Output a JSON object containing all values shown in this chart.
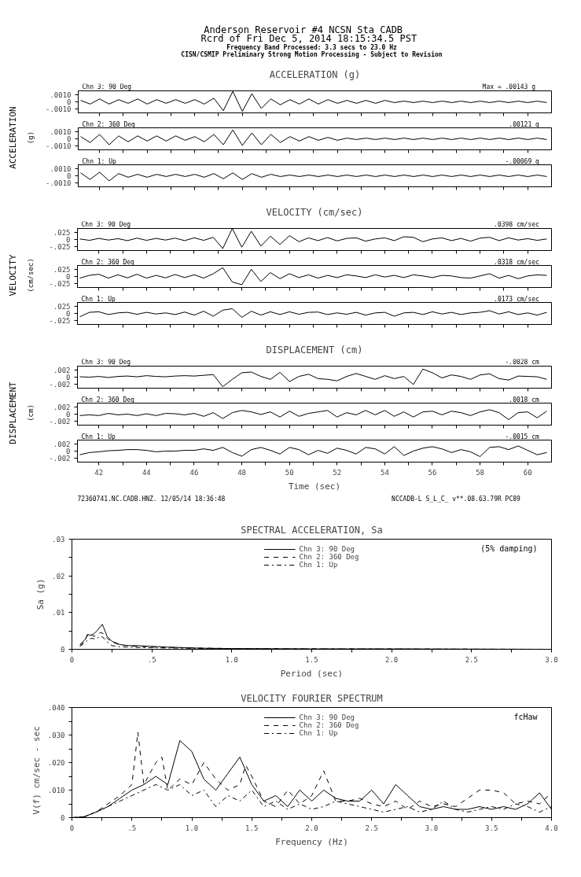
{
  "chart_data": [
    {
      "type": "other",
      "title": "Anderson Reservoir #4    NCSN Sta CADB",
      "subtitle": "Rcrd of Fri Dec  5, 2014 18:15:34.5 PST",
      "annotations": [
        "Frequency Band Processed: 3.3 secs to 23.0 Hz",
        "CISN/CSMIP Preliminary Strong Motion Processing - Subject to Revision"
      ]
    },
    {
      "type": "line",
      "title": "ACCELERATION (g)",
      "tick_labels": "y",
      "xlim": [
        41.1,
        61
      ],
      "ylim": [
        -0.0015,
        0.0015
      ],
      "yticks": [
        {
          "value": 0.001,
          "label": ".0010"
        },
        {
          "value": 0,
          "label": "0"
        },
        {
          "value": -0.001,
          "label": "-.0010"
        }
      ],
      "xticks": [
        42,
        {
          "value": 43,
          "label": null
        },
        44,
        {
          "value": 45,
          "label": null
        },
        46,
        {
          "value": 47,
          "label": null
        },
        48,
        {
          "value": 49,
          "label": null
        },
        50,
        {
          "value": 51,
          "label": null
        },
        52,
        {
          "value": 53,
          "label": null
        },
        54,
        {
          "value": 55,
          "label": null
        },
        56,
        {
          "value": 57,
          "label": null
        },
        58,
        {
          "value": 59,
          "label": null
        },
        60
      ],
      "annotations": [
        "Chn 3: 90 Deg",
        "Max =  .00143   g"
      ],
      "x": [
        41.2,
        41.6,
        42.0,
        42.4,
        42.8,
        43.2,
        43.6,
        44.0,
        44.4,
        44.8,
        45.2,
        45.6,
        46.0,
        46.4,
        46.8,
        47.2,
        47.6,
        48.0,
        48.4,
        48.8,
        49.2,
        49.6,
        50.0,
        50.4,
        50.8,
        51.2,
        51.6,
        52.0,
        52.4,
        52.8,
        53.2,
        53.6,
        54.0,
        54.4,
        54.8,
        55.2,
        55.6,
        56.0,
        56.4,
        56.8,
        57.2,
        57.6,
        58.0,
        58.4,
        58.8,
        59.2,
        59.6,
        60.0,
        60.4,
        60.8
      ],
      "series": [
        {
          "color": "#000000",
          "values": [
            0.0002,
            -0.0003,
            0.0004,
            -0.0003,
            0.0003,
            -0.0002,
            0.0004,
            -0.0003,
            0.0003,
            -0.0002,
            0.0003,
            -0.0002,
            0.0003,
            -0.0003,
            0.0005,
            -0.0012,
            0.00143,
            -0.0013,
            0.0011,
            -0.0009,
            0.0004,
            -0.0004,
            0.0003,
            -0.0003,
            0.0004,
            -0.0003,
            0.0003,
            -0.0002,
            0.0002,
            -0.0002,
            0.0002,
            -0.0002,
            0.0002,
            -0.0001,
            0.0001,
            -0.0001,
            0.0001,
            -0.0001,
            0.0001,
            -0.0001,
            0.0001,
            -0.0001,
            0.0001,
            -0.0001,
            0.0001,
            -0.0001,
            0.0001,
            -0.0001,
            0.0001,
            -0.0001
          ]
        }
      ]
    },
    {
      "type": "line",
      "ylabel": "ACCELERATION",
      "tick_labels": "y",
      "xlim": [
        41.1,
        61
      ],
      "ylim": [
        -0.0015,
        0.0015
      ],
      "yticks": [
        {
          "value": 0.001,
          "label": ".0010"
        },
        {
          "value": 0,
          "label": "0"
        },
        {
          "value": -0.001,
          "label": "-.0010"
        }
      ],
      "xticks": [
        42,
        {
          "value": 43,
          "label": null
        },
        44,
        {
          "value": 45,
          "label": null
        },
        46,
        {
          "value": 47,
          "label": null
        },
        48,
        {
          "value": 49,
          "label": null
        },
        50,
        {
          "value": 51,
          "label": null
        },
        52,
        {
          "value": 53,
          "label": null
        },
        54,
        {
          "value": 55,
          "label": null
        },
        56,
        {
          "value": 57,
          "label": null
        },
        58,
        {
          "value": 59,
          "label": null
        },
        60
      ],
      "annotations": [
        "Chn 2: 360 Deg",
        ".00121   g",
        "(g)"
      ],
      "x": [
        41.2,
        41.6,
        42.0,
        42.4,
        42.8,
        43.2,
        43.6,
        44.0,
        44.4,
        44.8,
        45.2,
        45.6,
        46.0,
        46.4,
        46.8,
        47.2,
        47.6,
        48.0,
        48.4,
        48.8,
        49.2,
        49.6,
        50.0,
        50.4,
        50.8,
        51.2,
        51.6,
        52.0,
        52.4,
        52.8,
        53.2,
        53.6,
        54.0,
        54.4,
        54.8,
        55.2,
        55.6,
        56.0,
        56.4,
        56.8,
        57.2,
        57.6,
        58.0,
        58.4,
        58.8,
        59.2,
        59.6,
        60.0,
        60.4,
        60.8
      ],
      "series": [
        {
          "color": "#000000",
          "values": [
            0.0003,
            -0.0005,
            0.0006,
            -0.0008,
            0.0004,
            -0.0004,
            0.0004,
            -0.0003,
            0.0004,
            -0.0003,
            0.0004,
            -0.0002,
            0.0003,
            -0.0004,
            0.0006,
            -0.0008,
            0.00121,
            -0.0009,
            0.0008,
            -0.0008,
            0.0006,
            -0.0005,
            0.0003,
            -0.0003,
            0.0003,
            -0.0002,
            0.0002,
            -0.0002,
            0.0001,
            -0.0001,
            0.0001,
            -0.0001,
            0.0001,
            -0.0001,
            0.0001,
            -0.0001,
            0.0001,
            -0.0001,
            0.0001,
            -0.0001,
            0.0001,
            -0.0001,
            0.0001,
            -0.0001,
            0.0001,
            -0.0001,
            0.0001,
            -0.0001,
            0.0001,
            -0.0001
          ]
        }
      ]
    },
    {
      "type": "line",
      "tick_labels": "y",
      "xlim": [
        41.1,
        61
      ],
      "ylim": [
        -0.0015,
        0.0015
      ],
      "yticks": [
        {
          "value": 0.001,
          "label": ".0010"
        },
        {
          "value": 0,
          "label": "0"
        },
        {
          "value": -0.001,
          "label": "-.0010"
        }
      ],
      "xticks": [
        42,
        {
          "value": 43,
          "label": null
        },
        44,
        {
          "value": 45,
          "label": null
        },
        46,
        {
          "value": 47,
          "label": null
        },
        48,
        {
          "value": 49,
          "label": null
        },
        50,
        {
          "value": 51,
          "label": null
        },
        52,
        {
          "value": 53,
          "label": null
        },
        54,
        {
          "value": 55,
          "label": null
        },
        56,
        {
          "value": 57,
          "label": null
        },
        58,
        {
          "value": 59,
          "label": null
        },
        60
      ],
      "annotations": [
        "Chn 1: Up",
        "-.00069   g"
      ],
      "x": [
        41.2,
        41.6,
        42.0,
        42.4,
        42.8,
        43.2,
        43.6,
        44.0,
        44.4,
        44.8,
        45.2,
        45.6,
        46.0,
        46.4,
        46.8,
        47.2,
        47.6,
        48.0,
        48.4,
        48.8,
        49.2,
        49.6,
        50.0,
        50.4,
        50.8,
        51.2,
        51.6,
        52.0,
        52.4,
        52.8,
        53.2,
        53.6,
        54.0,
        54.4,
        54.8,
        55.2,
        55.6,
        56.0,
        56.4,
        56.8,
        57.2,
        57.6,
        58.0,
        58.4,
        58.8,
        59.2,
        59.6,
        60.0,
        60.4,
        60.8
      ],
      "series": [
        {
          "color": "#000000",
          "values": [
            0.0004,
            -0.0005,
            0.0005,
            -0.00069,
            0.0003,
            -0.0002,
            0.0002,
            -0.0002,
            0.0002,
            -0.0001,
            0.0002,
            -0.0001,
            0.0002,
            -0.0002,
            0.0003,
            -0.0004,
            0.0004,
            -0.0005,
            0.0003,
            -0.0002,
            0.0002,
            -0.0001,
            0.0001,
            -0.0001,
            0.0001,
            -0.0001,
            0.0001,
            -0.0001,
            0.0001,
            -0.0001,
            0.0001,
            -0.0001,
            0.0001,
            -0.0001,
            0.0001,
            -0.0001,
            0.0001,
            -0.0001,
            0.0001,
            -0.0001,
            0.0001,
            -0.0001,
            0.0001,
            -0.0001,
            0.0001,
            -0.0001,
            0.0001,
            -0.0001,
            0.0001,
            -0.0001
          ]
        }
      ]
    },
    {
      "type": "line",
      "title": "VELOCITY (cm/sec)",
      "tick_labels": "y",
      "xlim": [
        41.1,
        61
      ],
      "ylim": [
        -0.04,
        0.04
      ],
      "yticks": [
        {
          "value": 0.025,
          "label": ".025"
        },
        {
          "value": 0,
          "label": "0"
        },
        {
          "value": -0.025,
          "label": "-.025"
        }
      ],
      "xticks": [
        42,
        {
          "value": 43,
          "label": null
        },
        44,
        {
          "value": 45,
          "label": null
        },
        46,
        {
          "value": 47,
          "label": null
        },
        48,
        {
          "value": 49,
          "label": null
        },
        50,
        {
          "value": 51,
          "label": null
        },
        52,
        {
          "value": 53,
          "label": null
        },
        54,
        {
          "value": 55,
          "label": null
        },
        56,
        {
          "value": 57,
          "label": null
        },
        58,
        {
          "value": 59,
          "label": null
        },
        60
      ],
      "annotations": [
        "Chn 3: 90 Deg",
        ".0398   cm/sec"
      ],
      "x": [
        41.2,
        41.6,
        42.0,
        42.4,
        42.8,
        43.2,
        43.6,
        44.0,
        44.4,
        44.8,
        45.2,
        45.6,
        46.0,
        46.4,
        46.8,
        47.2,
        47.6,
        48.0,
        48.4,
        48.8,
        49.2,
        49.6,
        50.0,
        50.4,
        50.8,
        51.2,
        51.6,
        52.0,
        52.4,
        52.8,
        53.2,
        53.6,
        54.0,
        54.4,
        54.8,
        55.2,
        55.6,
        56.0,
        56.4,
        56.8,
        57.2,
        57.6,
        58.0,
        58.4,
        58.8,
        59.2,
        59.6,
        60.0,
        60.4,
        60.8
      ],
      "series": [
        {
          "color": "#000000",
          "values": [
            0.002,
            -0.003,
            0.004,
            -0.002,
            0.003,
            -0.004,
            0.005,
            -0.003,
            0.004,
            -0.002,
            0.005,
            -0.004,
            0.006,
            -0.003,
            0.008,
            -0.033,
            0.0398,
            -0.028,
            0.03,
            -0.024,
            0.012,
            -0.018,
            0.014,
            -0.008,
            0.006,
            -0.004,
            0.007,
            -0.005,
            0.004,
            0.006,
            -0.006,
            0.002,
            0.006,
            -0.004,
            0.01,
            0.008,
            -0.008,
            0.002,
            0.006,
            -0.004,
            0.004,
            -0.006,
            0.005,
            0.008,
            -0.004,
            0.006,
            -0.002,
            0.003,
            -0.003,
            0.002
          ]
        }
      ]
    },
    {
      "type": "line",
      "ylabel": "VELOCITY",
      "tick_labels": "y",
      "xlim": [
        41.1,
        61
      ],
      "ylim": [
        -0.04,
        0.04
      ],
      "yticks": [
        {
          "value": 0.025,
          "label": ".025"
        },
        {
          "value": 0,
          "label": "0"
        },
        {
          "value": -0.025,
          "label": "-.025"
        }
      ],
      "xticks": [
        42,
        {
          "value": 43,
          "label": null
        },
        44,
        {
          "value": 45,
          "label": null
        },
        46,
        {
          "value": 47,
          "label": null
        },
        48,
        {
          "value": 49,
          "label": null
        },
        50,
        {
          "value": 51,
          "label": null
        },
        52,
        {
          "value": 53,
          "label": null
        },
        54,
        {
          "value": 55,
          "label": null
        },
        56,
        {
          "value": 57,
          "label": null
        },
        58,
        {
          "value": 59,
          "label": null
        },
        60
      ],
      "annotations": [
        "Chn 2: 360 Deg",
        ".0318   cm/sec",
        "(cm/sec)"
      ],
      "x": [
        41.2,
        41.6,
        42.0,
        42.4,
        42.8,
        43.2,
        43.6,
        44.0,
        44.4,
        44.8,
        45.2,
        45.6,
        46.0,
        46.4,
        46.8,
        47.2,
        47.6,
        48.0,
        48.4,
        48.8,
        49.2,
        49.6,
        50.0,
        50.4,
        50.8,
        51.2,
        51.6,
        52.0,
        52.4,
        52.8,
        53.2,
        53.6,
        54.0,
        54.4,
        54.8,
        55.2,
        55.6,
        56.0,
        56.4,
        56.8,
        57.2,
        57.6,
        58.0,
        58.4,
        58.8,
        59.2,
        59.6,
        60.0,
        60.4,
        60.8
      ],
      "series": [
        {
          "color": "#000000",
          "values": [
            -0.006,
            0.004,
            0.008,
            -0.006,
            0.006,
            -0.005,
            0.008,
            -0.006,
            0.004,
            -0.005,
            0.007,
            -0.004,
            0.006,
            -0.006,
            0.01,
            0.0318,
            -0.02,
            -0.03,
            0.026,
            -0.018,
            0.014,
            -0.008,
            0.01,
            -0.004,
            0.006,
            -0.006,
            0.004,
            -0.004,
            0.006,
            0.002,
            -0.004,
            0.006,
            -0.002,
            0.004,
            -0.004,
            0.006,
            0.002,
            -0.004,
            0.004,
            0.002,
            -0.004,
            -0.006,
            0.002,
            0.01,
            -0.006,
            0.004,
            -0.008,
            0.002,
            0.006,
            0.004
          ]
        }
      ]
    },
    {
      "type": "line",
      "tick_labels": "y",
      "xlim": [
        41.1,
        61
      ],
      "ylim": [
        -0.04,
        0.04
      ],
      "yticks": [
        {
          "value": 0.025,
          "label": ".025"
        },
        {
          "value": 0,
          "label": "0"
        },
        {
          "value": -0.025,
          "label": "-.025"
        }
      ],
      "xticks": [
        42,
        {
          "value": 43,
          "label": null
        },
        44,
        {
          "value": 45,
          "label": null
        },
        46,
        {
          "value": 47,
          "label": null
        },
        48,
        {
          "value": 49,
          "label": null
        },
        50,
        {
          "value": 51,
          "label": null
        },
        52,
        {
          "value": 53,
          "label": null
        },
        54,
        {
          "value": 55,
          "label": null
        },
        56,
        {
          "value": 57,
          "label": null
        },
        58,
        {
          "value": 59,
          "label": null
        },
        60
      ],
      "annotations": [
        "Chn 1: Up",
        ".0173   cm/sec"
      ],
      "x": [
        41.2,
        41.6,
        42.0,
        42.4,
        42.8,
        43.2,
        43.6,
        44.0,
        44.4,
        44.8,
        45.2,
        45.6,
        46.0,
        46.4,
        46.8,
        47.2,
        47.6,
        48.0,
        48.4,
        48.8,
        49.2,
        49.6,
        50.0,
        50.4,
        50.8,
        51.2,
        51.6,
        52.0,
        52.4,
        52.8,
        53.2,
        53.6,
        54.0,
        54.4,
        54.8,
        55.2,
        55.6,
        56.0,
        56.4,
        56.8,
        57.2,
        57.6,
        58.0,
        58.4,
        58.8,
        59.2,
        59.6,
        60.0,
        60.4,
        60.8
      ],
      "series": [
        {
          "color": "#000000",
          "values": [
            -0.012,
            0.004,
            0.006,
            -0.004,
            0.002,
            0.004,
            -0.003,
            0.004,
            -0.002,
            0.002,
            -0.004,
            0.005,
            -0.006,
            0.008,
            -0.01,
            0.012,
            0.0173,
            -0.014,
            0.008,
            -0.006,
            0.006,
            -0.004,
            0.006,
            -0.003,
            0.004,
            0.005,
            -0.004,
            0.002,
            -0.003,
            0.004,
            -0.006,
            0.002,
            0.004,
            -0.01,
            0.002,
            0.004,
            -0.004,
            0.006,
            -0.002,
            0.004,
            -0.004,
            0.002,
            0.004,
            0.01,
            -0.002,
            0.006,
            -0.004,
            0.002,
            -0.006,
            0.004
          ]
        }
      ]
    },
    {
      "type": "line",
      "title": "DISPLACEMENT (cm)",
      "tick_labels": "y",
      "xlim": [
        41.1,
        61
      ],
      "ylim": [
        -0.003,
        0.003
      ],
      "yticks": [
        {
          "value": 0.002,
          "label": ".002"
        },
        {
          "value": 0,
          "label": "0"
        },
        {
          "value": -0.002,
          "label": "-.002"
        }
      ],
      "xticks": [
        42,
        {
          "value": 43,
          "label": null
        },
        44,
        {
          "value": 45,
          "label": null
        },
        46,
        {
          "value": 47,
          "label": null
        },
        48,
        {
          "value": 49,
          "label": null
        },
        50,
        {
          "value": 51,
          "label": null
        },
        52,
        {
          "value": 53,
          "label": null
        },
        54,
        {
          "value": 55,
          "label": null
        },
        56,
        {
          "value": 57,
          "label": null
        },
        58,
        {
          "value": 59,
          "label": null
        },
        60
      ],
      "annotations": [
        "Chn 3: 90 Deg",
        "-.0028   cm"
      ],
      "x": [
        41.2,
        41.6,
        42.0,
        42.4,
        42.8,
        43.2,
        43.6,
        44.0,
        44.4,
        44.8,
        45.2,
        45.6,
        46.0,
        46.4,
        46.8,
        47.2,
        47.6,
        48.0,
        48.4,
        48.8,
        49.2,
        49.6,
        50.0,
        50.4,
        50.8,
        51.2,
        51.6,
        52.0,
        52.4,
        52.8,
        53.2,
        53.6,
        54.0,
        54.4,
        54.8,
        55.2,
        55.6,
        56.0,
        56.4,
        56.8,
        57.2,
        57.6,
        58.0,
        58.4,
        58.8,
        59.2,
        59.6,
        60.0,
        60.4,
        60.8
      ],
      "series": [
        {
          "color": "#000000",
          "values": [
            0.0001,
            0,
            0.0002,
            -0.0001,
            0.0002,
            0.0003,
            0.0001,
            0.0004,
            0.0002,
            0.0001,
            0.0003,
            0.0004,
            0.0003,
            0.0005,
            0.0007,
            -0.0026,
            -0.0006,
            0.0012,
            0.0014,
            0.0002,
            -0.0006,
            0.0013,
            -0.0012,
            0.0002,
            0.0008,
            -0.0004,
            -0.0006,
            -0.001,
            0.0002,
            0.001,
            0.0002,
            -0.0006,
            0.0004,
            -0.0004,
            0.0002,
            -0.002,
            0.0022,
            0.0012,
            -0.0002,
            0.0006,
            0.0002,
            -0.0006,
            0.0006,
            0.0009,
            -0.0004,
            -0.0008,
            0.0003,
            0.0002,
            0.0001,
            -0.0006
          ]
        }
      ]
    },
    {
      "type": "line",
      "ylabel": "DISPLACEMENT",
      "tick_labels": "y",
      "xlim": [
        41.1,
        61
      ],
      "ylim": [
        -0.003,
        0.003
      ],
      "yticks": [
        {
          "value": 0.002,
          "label": ".002"
        },
        {
          "value": 0,
          "label": "0"
        },
        {
          "value": -0.002,
          "label": "-.002"
        }
      ],
      "xticks": [
        42,
        {
          "value": 43,
          "label": null
        },
        44,
        {
          "value": 45,
          "label": null
        },
        46,
        {
          "value": 47,
          "label": null
        },
        48,
        {
          "value": 49,
          "label": null
        },
        50,
        {
          "value": 51,
          "label": null
        },
        52,
        {
          "value": 53,
          "label": null
        },
        54,
        {
          "value": 55,
          "label": null
        },
        56,
        {
          "value": 57,
          "label": null
        },
        58,
        {
          "value": 59,
          "label": null
        },
        60
      ],
      "annotations": [
        "Chn 2: 360 Deg",
        ".0018   cm",
        "(cm)"
      ],
      "x": [
        41.2,
        41.6,
        42.0,
        42.4,
        42.8,
        43.2,
        43.6,
        44.0,
        44.4,
        44.8,
        45.2,
        45.6,
        46.0,
        46.4,
        46.8,
        47.2,
        47.6,
        48.0,
        48.4,
        48.8,
        49.2,
        49.6,
        50.0,
        50.4,
        50.8,
        51.2,
        51.6,
        52.0,
        52.4,
        52.8,
        53.2,
        53.6,
        54.0,
        54.4,
        54.8,
        55.2,
        55.6,
        56.0,
        56.4,
        56.8,
        57.2,
        57.6,
        58.0,
        58.4,
        58.8,
        59.2,
        59.6,
        60.0,
        60.4,
        60.8
      ],
      "series": [
        {
          "color": "#000000",
          "values": [
            -0.0004,
            -0.0002,
            -0.0004,
            0.0002,
            -0.0002,
            0,
            -0.0004,
            0.0001,
            -0.0004,
            0.0002,
            0.0001,
            -0.0002,
            0.0002,
            -0.0006,
            0.0004,
            -0.0012,
            0.0004,
            0.001,
            0.0006,
            -0.0001,
            0.0006,
            -0.0008,
            0.0008,
            -0.0006,
            0.0002,
            0.0006,
            0.001,
            -0.0008,
            0.0004,
            -0.0002,
            0.001,
            -0.0002,
            0.001,
            -0.0006,
            0.0006,
            -0.0008,
            0.0006,
            0.0008,
            -0.0002,
            0.0008,
            0.0004,
            -0.0004,
            0.0006,
            0.0012,
            0.0004,
            -0.0015,
            0.0004,
            0.0006,
            -0.001,
            0.0008
          ]
        }
      ]
    },
    {
      "type": "line",
      "xlabel": "Time (sec)",
      "xlim": [
        41.1,
        61
      ],
      "ylim": [
        -0.003,
        0.003
      ],
      "yticks": [
        {
          "value": 0.002,
          "label": ".002"
        },
        {
          "value": 0,
          "label": "0"
        },
        {
          "value": -0.002,
          "label": "-.002"
        }
      ],
      "xticks": [
        42,
        {
          "value": 43,
          "label": null
        },
        44,
        {
          "value": 45,
          "label": null
        },
        46,
        {
          "value": 47,
          "label": null
        },
        48,
        {
          "value": 49,
          "label": null
        },
        50,
        {
          "value": 51,
          "label": null
        },
        52,
        {
          "value": 53,
          "label": null
        },
        54,
        {
          "value": 55,
          "label": null
        },
        56,
        {
          "value": 57,
          "label": null
        },
        58,
        {
          "value": 59,
          "label": null
        },
        60
      ],
      "annotations": [
        "Chn 1: Up",
        "-.0015   cm",
        "72360741.NC.CADB.HNZ. 12/05/14 18:36:48",
        "NCCADB-L  S_L_C_  v**.08.63.79R PC89"
      ],
      "x": [
        41.2,
        41.6,
        42.0,
        42.4,
        42.8,
        43.2,
        43.6,
        44.0,
        44.4,
        44.8,
        45.2,
        45.6,
        46.0,
        46.4,
        46.8,
        47.2,
        47.6,
        48.0,
        48.4,
        48.8,
        49.2,
        49.6,
        50.0,
        50.4,
        50.8,
        51.2,
        51.6,
        52.0,
        52.4,
        52.8,
        53.2,
        53.6,
        54.0,
        54.4,
        54.8,
        55.2,
        55.6,
        56.0,
        56.4,
        56.8,
        57.2,
        57.6,
        58.0,
        58.4,
        58.8,
        59.2,
        59.6,
        60.0,
        60.4,
        60.8
      ],
      "series": [
        {
          "color": "#000000",
          "values": [
            -0.001,
            -0.0004,
            -0.0002,
            0.0001,
            0.0002,
            0.0004,
            0.0004,
            0.0002,
            -0.0002,
            0,
            0,
            0.0002,
            0.0002,
            0.0006,
            0.0002,
            0.001,
            -0.0004,
            -0.0014,
            0.0004,
            0.001,
            0.0002,
            -0.0008,
            0.001,
            0.0004,
            -0.001,
            0.0002,
            -0.0006,
            0.0008,
            0.0002,
            -0.0008,
            0.001,
            0.0006,
            -0.0008,
            0.0012,
            -0.0012,
            0,
            0.0008,
            0.0012,
            0.0006,
            -0.0004,
            0.0004,
            -0.0002,
            -0.0015,
            0.001,
            0.0012,
            0.0004,
            0.0014,
            0.0002,
            -0.001,
            -0.0004
          ]
        }
      ]
    },
    {
      "type": "line",
      "title": "SPECTRAL ACCELERATION, Sa",
      "xlabel": "Period (sec)",
      "ylabel": "Sa (g)",
      "legend": "top",
      "annotations": [
        "(5% damping)"
      ],
      "xlim": [
        0,
        3
      ],
      "ylim": [
        0,
        0.03
      ],
      "xticks": [
        {
          "value": 0,
          "label": "0"
        },
        {
          "value": 0.25,
          "label": null
        },
        {
          "value": 0.5,
          "label": ".5"
        },
        {
          "value": 0.75,
          "label": null
        },
        {
          "value": 1,
          "label": "1.0"
        },
        {
          "value": 1.25,
          "label": null
        },
        {
          "value": 1.5,
          "label": "1.5"
        },
        {
          "value": 1.75,
          "label": null
        },
        {
          "value": 2,
          "label": "2.0"
        },
        {
          "value": 2.25,
          "label": null
        },
        {
          "value": 2.5,
          "label": "2.5"
        },
        {
          "value": 2.75,
          "label": null
        },
        {
          "value": 3,
          "label": "3.0"
        }
      ],
      "yticks": [
        {
          "value": 0,
          "label": "0"
        },
        {
          "value": 0.005,
          "label": null
        },
        {
          "value": 0.01,
          "label": ".01"
        },
        {
          "value": 0.015,
          "label": null
        },
        {
          "value": 0.02,
          "label": ".02"
        },
        {
          "value": 0.025,
          "label": null
        },
        {
          "value": 0.03,
          "label": ".03"
        }
      ],
      "series": [
        {
          "name": "Chn 3: 90 Deg",
          "color": "#000000",
          "line_style": "solid",
          "x": [
            0.05,
            0.08,
            0.1,
            0.12,
            0.14,
            0.16,
            0.18,
            0.19,
            0.2,
            0.22,
            0.25,
            0.3,
            0.35,
            0.4,
            0.5,
            0.6,
            0.8,
            1.0,
            1.5,
            2.0,
            3.0
          ],
          "values": [
            0.0013,
            0.0025,
            0.004,
            0.0038,
            0.0043,
            0.0052,
            0.0063,
            0.0068,
            0.0058,
            0.0035,
            0.0022,
            0.0013,
            0.001,
            0.001,
            0.0008,
            0.0006,
            0.0003,
            0.0002,
            0.0001,
            0.0001,
            0
          ]
        },
        {
          "name": "Chn 2: 360 Deg",
          "color": "#000000",
          "line_style": "dashed",
          "x": [
            0.05,
            0.08,
            0.1,
            0.12,
            0.14,
            0.16,
            0.18,
            0.2,
            0.22,
            0.25,
            0.3,
            0.4,
            0.5,
            0.7,
            1.0,
            1.5,
            3.0
          ],
          "values": [
            0.001,
            0.0022,
            0.0044,
            0.004,
            0.0035,
            0.004,
            0.0046,
            0.0042,
            0.003,
            0.002,
            0.0012,
            0.0008,
            0.0006,
            0.0004,
            0.0002,
            0.0001,
            0
          ]
        },
        {
          "name": "Chn 1: Up",
          "color": "#000000",
          "line_style": "dashdot",
          "x": [
            0.05,
            0.08,
            0.1,
            0.12,
            0.15,
            0.18,
            0.2,
            0.22,
            0.25,
            0.3,
            0.4,
            0.5,
            0.7,
            1.0,
            1.5,
            3.0
          ],
          "values": [
            0.0008,
            0.0018,
            0.0025,
            0.003,
            0.0028,
            0.0036,
            0.003,
            0.002,
            0.001,
            0.0007,
            0.0005,
            0.0004,
            0.0003,
            0.0001,
            0.0001,
            0
          ]
        }
      ]
    },
    {
      "type": "line",
      "title": "VELOCITY FOURIER SPECTRUM",
      "xlabel": "Frequency (Hz)",
      "ylabel": "V(f)    cm/sec - sec",
      "legend": "top",
      "annotations": [
        "fcHaw"
      ],
      "xlim": [
        0,
        4
      ],
      "ylim": [
        0,
        0.04
      ],
      "xticks": [
        {
          "value": 0,
          "label": "0"
        },
        {
          "value": 0.25,
          "label": null
        },
        {
          "value": 0.5,
          "label": ".5"
        },
        {
          "value": 0.75,
          "label": null
        },
        {
          "value": 1,
          "label": "1.0"
        },
        {
          "value": 1.25,
          "label": null
        },
        {
          "value": 1.5,
          "label": "1.5"
        },
        {
          "value": 1.75,
          "label": null
        },
        {
          "value": 2,
          "label": "2.0"
        },
        {
          "value": 2.25,
          "label": null
        },
        {
          "value": 2.5,
          "label": "2.5"
        },
        {
          "value": 2.75,
          "label": null
        },
        {
          "value": 3,
          "label": "3.0"
        },
        {
          "value": 3.25,
          "label": null
        },
        {
          "value": 3.5,
          "label": "3.5"
        },
        {
          "value": 3.75,
          "label": null
        },
        {
          "value": 4,
          "label": "4.0"
        }
      ],
      "yticks": [
        {
          "value": 0,
          "label": "0"
        },
        {
          "value": 0.005,
          "label": null
        },
        {
          "value": 0.01,
          "label": ".010"
        },
        {
          "value": 0.015,
          "label": null
        },
        {
          "value": 0.02,
          "label": ".020"
        },
        {
          "value": 0.025,
          "label": null
        },
        {
          "value": 0.03,
          "label": ".030"
        },
        {
          "value": 0.035,
          "label": null
        },
        {
          "value": 0.04,
          "label": ".040"
        }
      ],
      "series": [
        {
          "name": "Chn 3: 90 Deg",
          "color": "#000000",
          "line_style": "solid",
          "x": [
            0,
            0.1,
            0.2,
            0.3,
            0.4,
            0.5,
            0.6,
            0.7,
            0.8,
            0.9,
            1.0,
            1.1,
            1.2,
            1.3,
            1.4,
            1.5,
            1.6,
            1.7,
            1.8,
            1.9,
            2.0,
            2.1,
            2.2,
            2.3,
            2.4,
            2.5,
            2.6,
            2.7,
            2.8,
            2.9,
            3.0,
            3.1,
            3.2,
            3.3,
            3.4,
            3.5,
            3.6,
            3.7,
            3.8,
            3.9,
            4.0
          ],
          "values": [
            0,
            0.0003,
            0.002,
            0.004,
            0.007,
            0.01,
            0.012,
            0.015,
            0.012,
            0.028,
            0.024,
            0.014,
            0.01,
            0.016,
            0.022,
            0.012,
            0.006,
            0.008,
            0.004,
            0.01,
            0.006,
            0.01,
            0.007,
            0.006,
            0.006,
            0.01,
            0.005,
            0.012,
            0.008,
            0.004,
            0.003,
            0.004,
            0.003,
            0.003,
            0.004,
            0.003,
            0.004,
            0.003,
            0.005,
            0.009,
            0.003
          ]
        },
        {
          "name": "Chn 2: 360 Deg",
          "color": "#000000",
          "line_style": "dashed",
          "x": [
            0,
            0.1,
            0.2,
            0.3,
            0.4,
            0.5,
            0.55,
            0.6,
            0.7,
            0.75,
            0.8,
            0.9,
            1.0,
            1.1,
            1.2,
            1.3,
            1.4,
            1.45,
            1.5,
            1.6,
            1.7,
            1.8,
            1.9,
            2.0,
            2.1,
            2.2,
            2.3,
            2.4,
            2.5,
            2.6,
            2.7,
            2.8,
            2.9,
            3.0,
            3.1,
            3.2,
            3.3,
            3.4,
            3.5,
            3.6,
            3.7,
            3.8,
            3.9,
            4.0
          ],
          "values": [
            0,
            0.0002,
            0.002,
            0.005,
            0.008,
            0.012,
            0.031,
            0.012,
            0.02,
            0.022,
            0.01,
            0.014,
            0.012,
            0.02,
            0.014,
            0.01,
            0.012,
            0.019,
            0.015,
            0.006,
            0.004,
            0.01,
            0.005,
            0.008,
            0.017,
            0.006,
            0.006,
            0.007,
            0.005,
            0.004,
            0.006,
            0.003,
            0.006,
            0.004,
            0.005,
            0.004,
            0.007,
            0.01,
            0.01,
            0.009,
            0.005,
            0.006,
            0.005,
            0.009
          ]
        },
        {
          "name": "Chn 1: Up",
          "color": "#000000",
          "line_style": "dashdot",
          "x": [
            0,
            0.1,
            0.2,
            0.3,
            0.4,
            0.5,
            0.6,
            0.7,
            0.8,
            0.9,
            1.0,
            1.1,
            1.2,
            1.3,
            1.4,
            1.5,
            1.6,
            1.7,
            1.8,
            1.9,
            2.0,
            2.1,
            2.2,
            2.3,
            2.4,
            2.5,
            2.6,
            2.7,
            2.8,
            2.9,
            3.0,
            3.1,
            3.2,
            3.3,
            3.4,
            3.5,
            3.6,
            3.7,
            3.8,
            3.9,
            4.0
          ],
          "values": [
            0,
            0.0002,
            0.002,
            0.004,
            0.006,
            0.008,
            0.01,
            0.012,
            0.01,
            0.012,
            0.008,
            0.01,
            0.004,
            0.008,
            0.006,
            0.01,
            0.004,
            0.006,
            0.003,
            0.005,
            0.003,
            0.004,
            0.006,
            0.005,
            0.004,
            0.003,
            0.002,
            0.003,
            0.004,
            0.002,
            0.003,
            0.006,
            0.003,
            0.002,
            0.003,
            0.004,
            0.003,
            0.005,
            0.004,
            0.002,
            0.004
          ]
        }
      ]
    }
  ]
}
